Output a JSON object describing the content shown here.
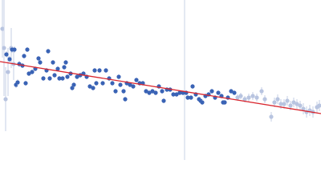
{
  "chart_data": {
    "type": "scatter",
    "xlim": [
      0,
      400
    ],
    "ylim": [
      0,
      200
    ],
    "series": [
      {
        "color": "#b8c4e0",
        "x": [
          3,
          5,
          7,
          10,
          14,
          17
        ],
        "y": [
          164,
          140,
          76,
          110,
          140,
          120
        ],
        "errors": [
          36,
          60,
          40,
          30,
          25,
          20
        ]
      },
      {
        "color": "#3a63b5",
        "x": [
          8,
          12,
          15,
          18,
          20,
          22,
          24,
          28,
          30,
          32,
          34,
          36,
          40,
          44,
          48,
          50,
          54,
          58,
          60,
          62,
          66,
          68,
          72,
          74,
          78,
          80,
          82,
          84,
          88,
          90,
          92,
          96,
          100,
          104,
          108,
          112,
          116,
          118,
          120,
          124,
          128,
          132,
          136,
          140,
          144,
          148,
          150,
          154,
          156,
          158,
          162,
          166,
          170,
          174,
          178,
          182,
          186,
          190,
          194,
          198,
          202,
          204,
          208,
          212,
          216,
          220,
          224,
          228,
          232,
          234,
          238,
          240,
          244,
          248,
          250,
          252,
          256,
          260,
          264,
          268,
          272,
          276,
          278,
          280,
          284,
          288,
          292
        ],
        "y": [
          132,
          126,
          138,
          138,
          94,
          97,
          120,
          118,
          130,
          96,
          138,
          108,
          110,
          114,
          127,
          122,
          102,
          112,
          136,
          102,
          122,
          106,
          114,
          102,
          102,
          116,
          122,
          104,
          108,
          90,
          94,
          104,
          106,
          108,
          104,
          92,
          90,
          112,
          96,
          112,
          96,
          112,
          102,
          96,
          86,
          104,
          94,
          86,
          76,
          96,
          94,
          92,
          100,
          96,
          96,
          86,
          84,
          86,
          84,
          92,
          86,
          74,
          88,
          88,
          82,
          82,
          84,
          84,
          84,
          78,
          78,
          92,
          82,
          76,
          74,
          72,
          80,
          82,
          86,
          78,
          84,
          80,
          72,
          72,
          78,
          86,
          84
        ],
        "errors": [
          4,
          4,
          4,
          4,
          4,
          4,
          4,
          3,
          3,
          3,
          3,
          3,
          3,
          3,
          3,
          3,
          3,
          3,
          3,
          3,
          3,
          3,
          3,
          3,
          3,
          3,
          3,
          3,
          3,
          3,
          3,
          3,
          3,
          3,
          3,
          3,
          3,
          3,
          3,
          3,
          3,
          3,
          3,
          3,
          3,
          3,
          3,
          3,
          3,
          3,
          3,
          3,
          3,
          3,
          3,
          3,
          3,
          3,
          3,
          3,
          3,
          3,
          3,
          3,
          3,
          3,
          3,
          3,
          3,
          3,
          3,
          3,
          3,
          3,
          3,
          3,
          3,
          3,
          3,
          3,
          3,
          3,
          3,
          3,
          3,
          3,
          3
        ]
      },
      {
        "color": "#b8c4e0",
        "x": [
          296,
          300,
          305,
          310,
          315,
          320,
          326,
          330,
          338,
          342,
          346,
          350,
          354,
          358,
          362,
          366,
          370,
          374,
          378,
          382,
          386,
          390,
          395,
          398
        ],
        "y": [
          78,
          80,
          76,
          78,
          80,
          78,
          86,
          76,
          54,
          72,
          76,
          70,
          70,
          74,
          68,
          72,
          70,
          68,
          64,
          60,
          62,
          60,
          66,
          68
        ],
        "errors": [
          4,
          4,
          4,
          5,
          5,
          5,
          5,
          5,
          6,
          6,
          6,
          6,
          6,
          6,
          6,
          6,
          6,
          6,
          7,
          7,
          7,
          7,
          7,
          7
        ]
      }
    ],
    "fit": {
      "x": [
        0,
        400
      ],
      "y": [
        123,
        58
      ],
      "color": "#d9262e"
    },
    "vline": {
      "x": 230,
      "color": "#c9d3e6"
    }
  }
}
